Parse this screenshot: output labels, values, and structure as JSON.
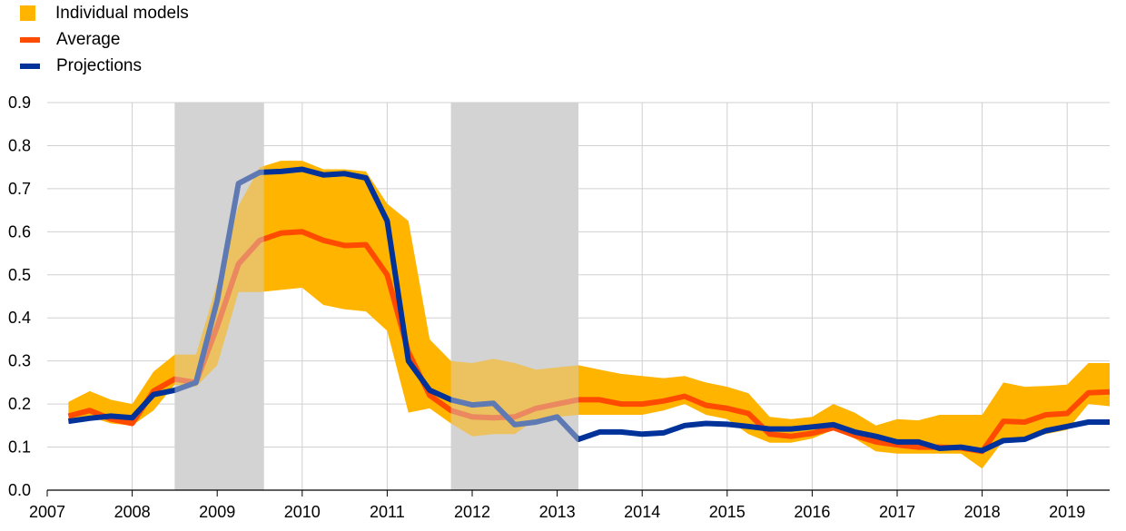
{
  "chart_data": {
    "type": "line",
    "ylim": [
      0,
      0.9
    ],
    "yticks": [
      "0.0",
      "0.1",
      "0.2",
      "0.3",
      "0.4",
      "0.5",
      "0.6",
      "0.7",
      "0.8",
      "0.9"
    ],
    "xticks": [
      "2007",
      "2008",
      "2009",
      "2010",
      "2011",
      "2012",
      "2013",
      "2014",
      "2015",
      "2016",
      "2017",
      "2018",
      "2019"
    ],
    "grid": true,
    "legend_position": "top-left",
    "shaded_periods": [
      [
        2008.5,
        2009.55
      ],
      [
        2011.75,
        2013.25
      ]
    ],
    "series": [
      {
        "name": "Individual models",
        "kind": "range",
        "color": "#FFB400",
        "x": [
          2007.25,
          2007.5,
          2007.75,
          2008.0,
          2008.25,
          2008.5,
          2008.75,
          2009.0,
          2009.25,
          2009.5,
          2009.75,
          2010.0,
          2010.25,
          2010.5,
          2010.75,
          2011.0,
          2011.25,
          2011.5,
          2011.75,
          2012.0,
          2012.25,
          2012.5,
          2012.75,
          2013.0,
          2013.25,
          2013.5,
          2013.75,
          2014.0,
          2014.25,
          2014.5,
          2014.75,
          2015.0,
          2015.25,
          2015.5,
          2015.75,
          2016.0,
          2016.25,
          2016.5,
          2016.75,
          2017.0,
          2017.25,
          2017.5,
          2017.75,
          2018.0,
          2018.25,
          2018.5,
          2018.75,
          2019.0,
          2019.25,
          2019.5
        ],
        "low": [
          0.155,
          0.17,
          0.155,
          0.15,
          0.185,
          0.245,
          0.24,
          0.29,
          0.46,
          0.46,
          0.465,
          0.47,
          0.43,
          0.42,
          0.415,
          0.37,
          0.18,
          0.19,
          0.155,
          0.125,
          0.13,
          0.13,
          0.165,
          0.17,
          0.175,
          0.175,
          0.175,
          0.175,
          0.185,
          0.2,
          0.175,
          0.165,
          0.13,
          0.11,
          0.11,
          0.12,
          0.14,
          0.12,
          0.09,
          0.085,
          0.085,
          0.085,
          0.085,
          0.05,
          0.115,
          0.12,
          0.13,
          0.14,
          0.2,
          0.195
        ],
        "high": [
          0.205,
          0.23,
          0.21,
          0.2,
          0.275,
          0.315,
          0.315,
          0.48,
          0.66,
          0.75,
          0.765,
          0.765,
          0.745,
          0.745,
          0.74,
          0.665,
          0.625,
          0.35,
          0.3,
          0.295,
          0.305,
          0.295,
          0.28,
          0.285,
          0.29,
          0.28,
          0.27,
          0.265,
          0.26,
          0.265,
          0.25,
          0.24,
          0.225,
          0.17,
          0.165,
          0.17,
          0.2,
          0.18,
          0.15,
          0.165,
          0.162,
          0.175,
          0.175,
          0.175,
          0.25,
          0.24,
          0.242,
          0.245,
          0.295,
          0.295
        ]
      },
      {
        "name": "Average",
        "color": "#FF4B00",
        "x": [
          2007.25,
          2007.5,
          2007.75,
          2008.0,
          2008.25,
          2008.5,
          2008.75,
          2009.0,
          2009.25,
          2009.5,
          2009.75,
          2010.0,
          2010.25,
          2010.5,
          2010.75,
          2011.0,
          2011.25,
          2011.5,
          2011.75,
          2012.0,
          2012.25,
          2012.5,
          2012.75,
          2013.0,
          2013.25,
          2013.5,
          2013.75,
          2014.0,
          2014.25,
          2014.5,
          2014.75,
          2015.0,
          2015.25,
          2015.5,
          2015.75,
          2016.0,
          2016.25,
          2016.5,
          2016.75,
          2017.0,
          2017.25,
          2017.5,
          2017.75,
          2018.0,
          2018.25,
          2018.5,
          2018.75,
          2019.0,
          2019.25,
          2019.5
        ],
        "values": [
          0.172,
          0.185,
          0.165,
          0.155,
          0.23,
          0.258,
          0.25,
          0.38,
          0.525,
          0.58,
          0.597,
          0.6,
          0.58,
          0.568,
          0.57,
          0.5,
          0.32,
          0.22,
          0.185,
          0.17,
          0.168,
          0.17,
          0.19,
          0.2,
          0.21,
          0.21,
          0.2,
          0.2,
          0.207,
          0.218,
          0.197,
          0.19,
          0.178,
          0.13,
          0.125,
          0.132,
          0.145,
          0.127,
          0.112,
          0.105,
          0.1,
          0.1,
          0.098,
          0.09,
          0.16,
          0.158,
          0.175,
          0.178,
          0.226,
          0.228
        ]
      },
      {
        "name": "Projections",
        "color": "#003299",
        "x": [
          2007.25,
          2007.5,
          2007.75,
          2008.0,
          2008.25,
          2008.5,
          2008.75,
          2009.0,
          2009.25,
          2009.5,
          2009.75,
          2010.0,
          2010.25,
          2010.5,
          2010.75,
          2011.0,
          2011.25,
          2011.5,
          2011.75,
          2012.0,
          2012.25,
          2012.5,
          2012.75,
          2013.0,
          2013.25,
          2013.5,
          2013.75,
          2014.0,
          2014.25,
          2014.5,
          2014.75,
          2015.0,
          2015.25,
          2015.5,
          2015.75,
          2016.0,
          2016.25,
          2016.5,
          2016.75,
          2017.0,
          2017.25,
          2017.5,
          2017.75,
          2018.0,
          2018.25,
          2018.5,
          2018.75,
          2019.0,
          2019.25,
          2019.5
        ],
        "values": [
          0.16,
          0.167,
          0.172,
          0.168,
          0.222,
          0.232,
          0.25,
          0.44,
          0.712,
          0.738,
          0.74,
          0.745,
          0.732,
          0.735,
          0.725,
          0.625,
          0.3,
          0.232,
          0.21,
          0.198,
          0.202,
          0.152,
          0.158,
          0.17,
          0.118,
          0.135,
          0.135,
          0.13,
          0.133,
          0.15,
          0.155,
          0.153,
          0.148,
          0.142,
          0.142,
          0.147,
          0.152,
          0.135,
          0.125,
          0.112,
          0.112,
          0.097,
          0.1,
          0.092,
          0.115,
          0.118,
          0.138,
          0.148,
          0.158,
          0.158
        ]
      }
    ]
  }
}
